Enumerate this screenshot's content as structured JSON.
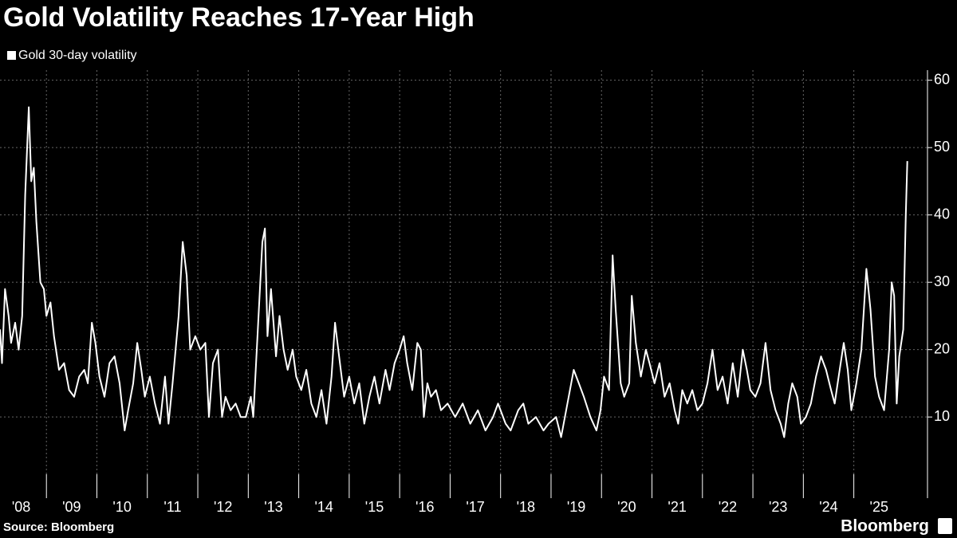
{
  "chart_data": {
    "type": "line",
    "title": "Gold Volatility Reaches 17-Year High",
    "source": "Source: Bloomberg",
    "brand": "Bloomberg",
    "xlim": [
      2008.08,
      2026.46
    ],
    "ylim": [
      1.5,
      61.5
    ],
    "yticks": [
      10,
      20,
      30,
      40,
      50,
      60
    ],
    "grid": true,
    "xticks": [
      {
        "value": 2008,
        "label": "'08"
      },
      {
        "value": 2009,
        "label": "'09"
      },
      {
        "value": 2010,
        "label": "'10"
      },
      {
        "value": 2011,
        "label": "'11"
      },
      {
        "value": 2012,
        "label": "'12"
      },
      {
        "value": 2013,
        "label": "'13"
      },
      {
        "value": 2014,
        "label": "'14"
      },
      {
        "value": 2015,
        "label": "'15"
      },
      {
        "value": 2016,
        "label": "'16"
      },
      {
        "value": 2017,
        "label": "'17"
      },
      {
        "value": 2018,
        "label": "'18"
      },
      {
        "value": 2019,
        "label": "'19"
      },
      {
        "value": 2020,
        "label": "'20"
      },
      {
        "value": 2021,
        "label": "'21"
      },
      {
        "value": 2022,
        "label": "'22"
      },
      {
        "value": 2023,
        "label": "'23"
      },
      {
        "value": 2024,
        "label": "'24"
      },
      {
        "value": 2025,
        "label": "'25"
      }
    ],
    "series": [
      {
        "name": "Gold 30-day volatility",
        "color": "#ffffff",
        "x": [
          2008.08,
          2008.12,
          2008.18,
          2008.25,
          2008.3,
          2008.38,
          2008.45,
          2008.52,
          2008.58,
          2008.65,
          2008.7,
          2008.75,
          2008.8,
          2008.88,
          2008.95,
          2009.0,
          2009.08,
          2009.15,
          2009.25,
          2009.35,
          2009.45,
          2009.55,
          2009.65,
          2009.75,
          2009.82,
          2009.9,
          2009.97,
          2010.05,
          2010.15,
          2010.25,
          2010.35,
          2010.45,
          2010.55,
          2010.62,
          2010.72,
          2010.8,
          2010.88,
          2010.95,
          2011.05,
          2011.15,
          2011.25,
          2011.35,
          2011.42,
          2011.5,
          2011.62,
          2011.7,
          2011.78,
          2011.85,
          2011.95,
          2012.05,
          2012.15,
          2012.22,
          2012.3,
          2012.4,
          2012.48,
          2012.55,
          2012.65,
          2012.75,
          2012.85,
          2012.95,
          2013.05,
          2013.1,
          2013.28,
          2013.33,
          2013.38,
          2013.45,
          2013.55,
          2013.62,
          2013.7,
          2013.78,
          2013.88,
          2013.95,
          2014.05,
          2014.15,
          2014.25,
          2014.35,
          2014.45,
          2014.55,
          2014.65,
          2014.72,
          2014.8,
          2014.9,
          2015.0,
          2015.1,
          2015.2,
          2015.3,
          2015.4,
          2015.5,
          2015.6,
          2015.72,
          2015.8,
          2015.9,
          2016.0,
          2016.08,
          2016.15,
          2016.25,
          2016.35,
          2016.42,
          2016.48,
          2016.55,
          2016.62,
          2016.72,
          2016.82,
          2016.95,
          2017.1,
          2017.25,
          2017.4,
          2017.55,
          2017.7,
          2017.85,
          2017.95,
          2018.1,
          2018.2,
          2018.35,
          2018.45,
          2018.55,
          2018.7,
          2018.85,
          2018.95,
          2019.1,
          2019.2,
          2019.35,
          2019.45,
          2019.55,
          2019.65,
          2019.78,
          2019.9,
          2019.98,
          2020.05,
          2020.15,
          2020.22,
          2020.28,
          2020.38,
          2020.45,
          2020.55,
          2020.6,
          2020.68,
          2020.78,
          2020.88,
          2020.95,
          2021.05,
          2021.15,
          2021.25,
          2021.35,
          2021.45,
          2021.52,
          2021.6,
          2021.7,
          2021.8,
          2021.9,
          2022.0,
          2022.1,
          2022.2,
          2022.3,
          2022.4,
          2022.5,
          2022.6,
          2022.7,
          2022.8,
          2022.88,
          2022.95,
          2023.05,
          2023.15,
          2023.25,
          2023.35,
          2023.45,
          2023.55,
          2023.62,
          2023.7,
          2023.78,
          2023.88,
          2023.95,
          2024.05,
          2024.15,
          2024.25,
          2024.35,
          2024.45,
          2024.55,
          2024.62,
          2024.7,
          2024.8,
          2024.88,
          2024.95,
          2025.05,
          2025.15,
          2025.25,
          2025.33,
          2025.42,
          2025.5,
          2025.6,
          2025.7,
          2025.75,
          2025.8,
          2025.85,
          2025.9,
          2025.98,
          2026.03,
          2026.06
        ],
        "values": [
          23,
          18,
          29,
          25,
          21,
          24,
          20,
          25,
          43,
          56,
          45,
          47,
          39,
          30,
          29,
          25,
          27,
          22,
          17,
          18,
          14,
          13,
          16,
          17,
          15,
          24,
          21,
          16,
          13,
          18,
          19,
          15,
          8,
          11,
          15,
          21,
          17,
          13,
          16,
          12,
          9,
          16,
          9,
          15,
          25,
          36,
          31,
          20,
          22,
          20,
          21,
          10,
          18,
          20,
          10,
          13,
          11,
          12,
          10,
          10,
          13,
          10,
          36,
          38,
          22,
          29,
          19,
          25,
          20,
          17,
          20,
          16,
          14,
          17,
          12,
          10,
          14,
          9,
          16,
          24,
          19,
          13,
          16,
          12,
          15,
          9,
          13,
          16,
          12,
          17,
          14,
          18,
          20,
          22,
          18,
          14,
          21,
          20,
          10,
          15,
          13,
          14,
          11,
          12,
          10,
          12,
          9,
          11,
          8,
          10,
          12,
          9,
          8,
          11,
          12,
          9,
          10,
          8,
          9,
          10,
          7,
          13,
          17,
          15,
          13,
          10,
          8,
          11,
          16,
          14,
          34,
          26,
          15,
          13,
          15,
          28,
          21,
          16,
          20,
          18,
          15,
          18,
          13,
          15,
          11,
          9,
          14,
          12,
          14,
          11,
          12,
          15,
          20,
          14,
          16,
          12,
          18,
          13,
          20,
          17,
          14,
          13,
          15,
          21,
          14,
          11,
          9,
          7,
          12,
          15,
          13,
          9,
          10,
          12,
          16,
          19,
          17,
          14,
          12,
          16,
          21,
          17,
          11,
          15,
          20,
          32,
          26,
          16,
          13,
          11,
          20,
          30,
          28,
          12,
          19,
          23,
          40,
          48
        ]
      }
    ]
  }
}
